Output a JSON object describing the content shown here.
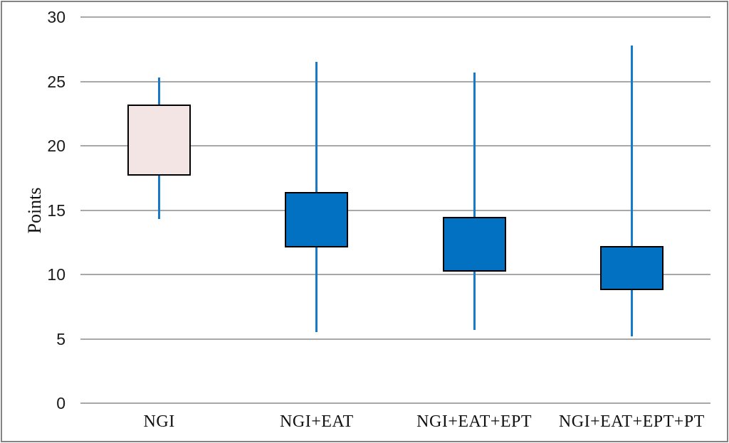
{
  "chart_data": {
    "type": "boxplot",
    "title": "",
    "ylabel": "Points",
    "xlabel": "",
    "ylim": [
      0,
      30
    ],
    "yticks": [
      0,
      5,
      10,
      15,
      20,
      25,
      30
    ],
    "grid": "horizontal",
    "legend": "none",
    "categories": [
      "NGI",
      "NGI+EAT",
      "NGI+EAT+EPT",
      "NGI+EAT+EPT+PT"
    ],
    "boxes": [
      {
        "category": "NGI",
        "whisker_low": 14.3,
        "box_low": 17.7,
        "box_high": 23.2,
        "whisker_high": 25.3,
        "fill": "#f3e5e3"
      },
      {
        "category": "NGI+EAT",
        "whisker_low": 5.5,
        "box_low": 12.1,
        "box_high": 16.4,
        "whisker_high": 26.5,
        "fill": "#0371c2"
      },
      {
        "category": "NGI+EAT+EPT",
        "whisker_low": 5.7,
        "box_low": 10.2,
        "box_high": 14.5,
        "whisker_high": 25.7,
        "fill": "#0371c2"
      },
      {
        "category": "NGI+EAT+EPT+PT",
        "whisker_low": 5.2,
        "box_low": 8.8,
        "box_high": 12.2,
        "whisker_high": 27.8,
        "fill": "#0371c2"
      }
    ],
    "colors": {
      "whisker": "#1879c9",
      "box_border": "#000000",
      "gridline": "#a8a8a8",
      "frame_border": "#848484",
      "text": "#111111"
    }
  }
}
